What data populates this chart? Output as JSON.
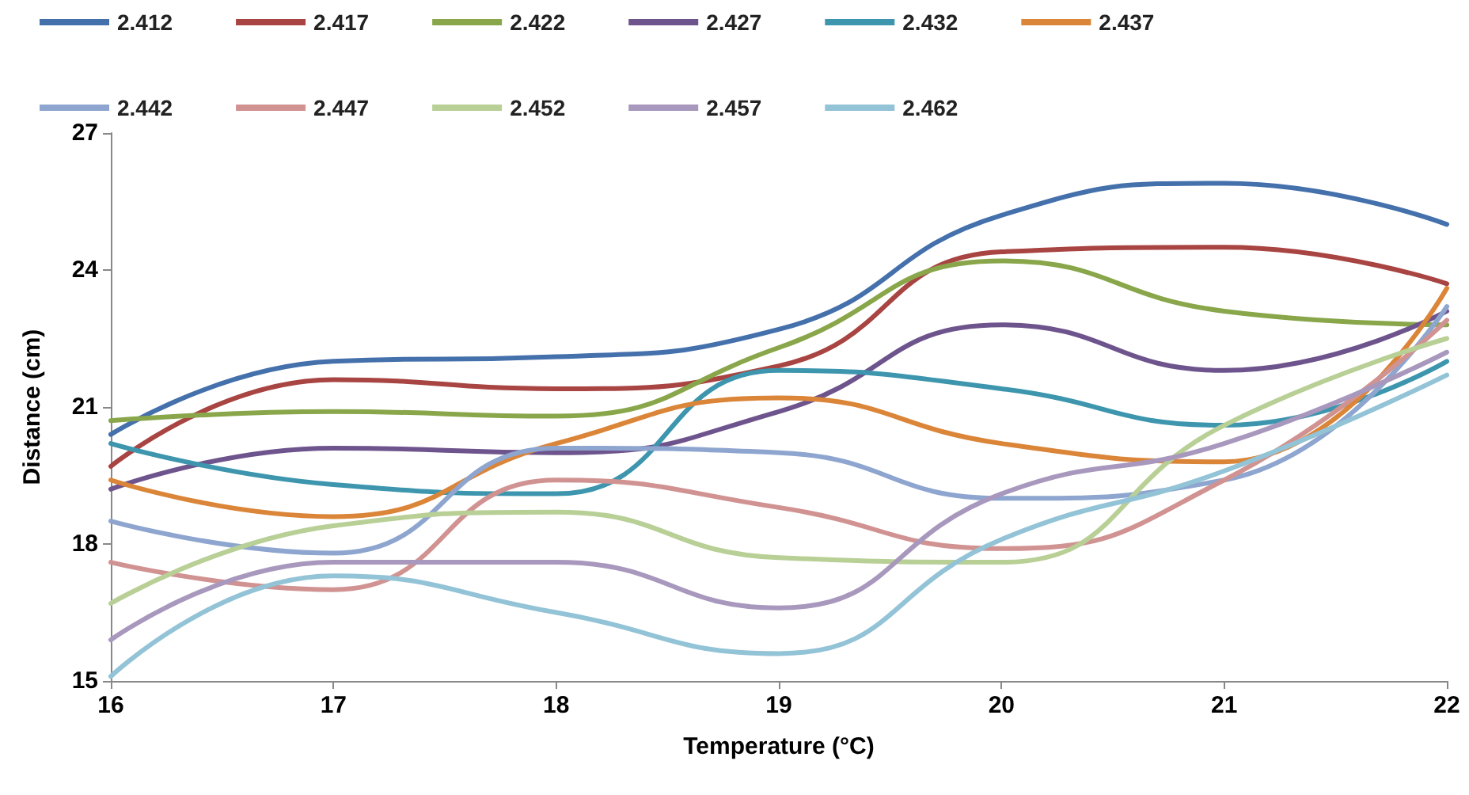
{
  "chart_data": {
    "type": "line",
    "xlabel": "Temperature (°C)",
    "ylabel": "Distance (cm)",
    "x": [
      16,
      17,
      18,
      19,
      20,
      21,
      22
    ],
    "xlim": [
      16,
      22
    ],
    "xticks": [
      16,
      17,
      18,
      19,
      20,
      21,
      22
    ],
    "ylim": [
      15,
      27
    ],
    "yticks": [
      15,
      18,
      21,
      24,
      27
    ],
    "grid": false,
    "legend": "top",
    "marker": "none",
    "line_style": "solid",
    "series": [
      {
        "name": "2.412",
        "color": "#4470ab",
        "values": [
          20.4,
          22.0,
          22.1,
          22.7,
          25.2,
          25.9,
          25.0
        ]
      },
      {
        "name": "2.417",
        "color": "#a84441",
        "values": [
          19.7,
          21.6,
          21.4,
          21.9,
          24.4,
          24.5,
          23.7
        ]
      },
      {
        "name": "2.422",
        "color": "#89a64a",
        "values": [
          20.7,
          20.9,
          20.8,
          22.3,
          24.2,
          23.1,
          22.8
        ]
      },
      {
        "name": "2.427",
        "color": "#6e548d",
        "values": [
          19.2,
          20.1,
          20.0,
          20.9,
          22.8,
          21.8,
          23.1
        ]
      },
      {
        "name": "2.432",
        "color": "#3d96ae",
        "values": [
          20.2,
          19.3,
          19.1,
          21.8,
          21.4,
          20.6,
          22.0
        ]
      },
      {
        "name": "2.437",
        "color": "#db8539",
        "values": [
          19.4,
          18.6,
          20.2,
          21.2,
          20.2,
          19.8,
          23.6
        ]
      },
      {
        "name": "2.442",
        "color": "#8ea6cf",
        "values": [
          18.5,
          17.8,
          20.1,
          20.0,
          19.0,
          19.4,
          23.2
        ]
      },
      {
        "name": "2.447",
        "color": "#d19392",
        "values": [
          17.6,
          17.0,
          19.4,
          18.8,
          17.9,
          19.4,
          22.9
        ]
      },
      {
        "name": "2.452",
        "color": "#b8cf96",
        "values": [
          16.7,
          18.4,
          18.7,
          17.7,
          17.6,
          20.6,
          22.5
        ]
      },
      {
        "name": "2.457",
        "color": "#a898bd",
        "values": [
          15.9,
          17.6,
          17.6,
          16.6,
          19.1,
          20.2,
          22.2
        ]
      },
      {
        "name": "2.462",
        "color": "#93c3d6",
        "values": [
          15.1,
          17.3,
          16.5,
          15.6,
          18.1,
          19.6,
          21.7
        ]
      }
    ]
  }
}
